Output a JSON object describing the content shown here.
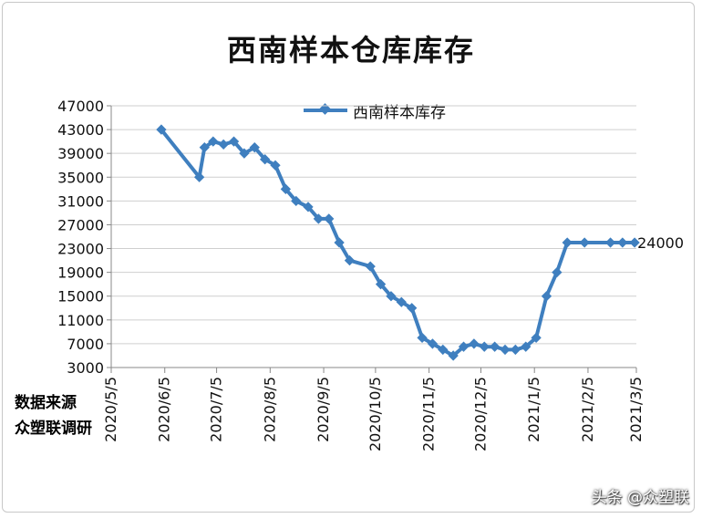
{
  "chart_data": {
    "type": "line",
    "title": "西南样本仓库库存",
    "xlabel": "",
    "ylabel": "",
    "ylim": [
      3000,
      47000
    ],
    "y_ticks": [
      3000,
      7000,
      11000,
      15000,
      19000,
      23000,
      27000,
      31000,
      35000,
      39000,
      43000,
      47000
    ],
    "x_ticks": [
      "2020/5/5",
      "2020/6/5",
      "2020/7/5",
      "2020/8/5",
      "2020/9/5",
      "2020/10/5",
      "2020/11/5",
      "2020/12/5",
      "2021/1/5",
      "2021/2/5",
      "2021/3/5"
    ],
    "grid": true,
    "legend_position": "top-center",
    "series": [
      {
        "name": "西南样本库存",
        "color": "#3f7fbf",
        "x": [
          "2020/6/3",
          "2020/6/25",
          "2020/6/28",
          "2020/7/3",
          "2020/7/9",
          "2020/7/15",
          "2020/7/21",
          "2020/7/27",
          "2020/8/2",
          "2020/8/8",
          "2020/8/14",
          "2020/8/20",
          "2020/8/27",
          "2020/9/2",
          "2020/9/8",
          "2020/9/14",
          "2020/9/20",
          "2020/10/2",
          "2020/10/8",
          "2020/10/14",
          "2020/10/20",
          "2020/10/26",
          "2020/11/1",
          "2020/11/7",
          "2020/11/13",
          "2020/11/19",
          "2020/11/25",
          "2020/12/1",
          "2020/12/7",
          "2020/12/13",
          "2020/12/19",
          "2020/12/25",
          "2020/12/31",
          "2021/1/6",
          "2021/1/12",
          "2021/1/18",
          "2021/1/24",
          "2021/2/3",
          "2021/2/18",
          "2021/2/25",
          "2021/3/4"
        ],
        "values": [
          43000,
          35000,
          40000,
          41000,
          40500,
          41000,
          39000,
          40000,
          38000,
          37000,
          33000,
          31000,
          30000,
          28000,
          28000,
          24000,
          21000,
          20000,
          17000,
          15000,
          14000,
          13000,
          8000,
          7000,
          6000,
          5000,
          6500,
          7000,
          6500,
          6500,
          6000,
          6000,
          6500,
          8000,
          15000,
          19000,
          24000,
          24000,
          24000,
          24000,
          24000
        ]
      }
    ],
    "annotations": [
      {
        "text": "24000",
        "x": "2021/3/4",
        "y": 24000
      }
    ]
  },
  "source_note": {
    "line1": "数据来源",
    "line2": "众塑联调研"
  },
  "watermark": "头条 @众塑联"
}
